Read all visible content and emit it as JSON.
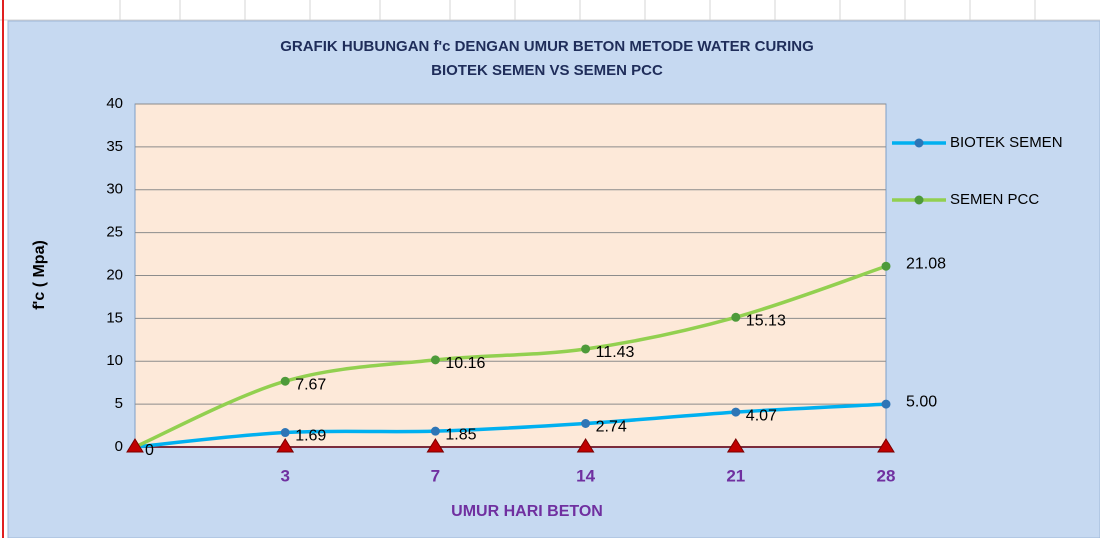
{
  "chart_data": {
    "type": "line",
    "title": "GRAFIK HUBUNGAN  f'c  DENGAN UMUR BETON  METODE WATER CURING",
    "subtitle": "BIOTEK SEMEN  VS  SEMEN  PCC",
    "x_label": "UMUR  HARI BETON",
    "y_label": "f'c  ( Mpa)",
    "categories": [
      null,
      "3",
      "7",
      "14",
      "21",
      "28"
    ],
    "series": [
      {
        "name": "BIOTEK SEMEN",
        "color": "#00b0f0",
        "marker_color": "#2e75b6",
        "values": [
          0,
          1.69,
          1.85,
          2.74,
          4.07,
          5.0
        ],
        "value_labels": [
          "0",
          "1.69",
          "1.85",
          "2.74",
          "4.07",
          "5.00"
        ]
      },
      {
        "name": "SEMEN PCC",
        "color": "#92d050",
        "marker_color": "#4e9a3a",
        "values": [
          0,
          7.67,
          10.16,
          11.43,
          15.13,
          21.08
        ],
        "value_labels": [
          null,
          "7.67",
          "10.16",
          "11.43",
          "15.13",
          "21.08"
        ]
      },
      {
        "color": "#c00000",
        "marker": "triangle",
        "values": [
          0,
          0,
          0,
          0,
          0,
          0
        ]
      }
    ],
    "ylim": [
      0,
      40
    ],
    "yticks": [
      0,
      5,
      10,
      15,
      20,
      25,
      30,
      35,
      40
    ],
    "grid": true,
    "smooth": true,
    "legend": "right"
  }
}
